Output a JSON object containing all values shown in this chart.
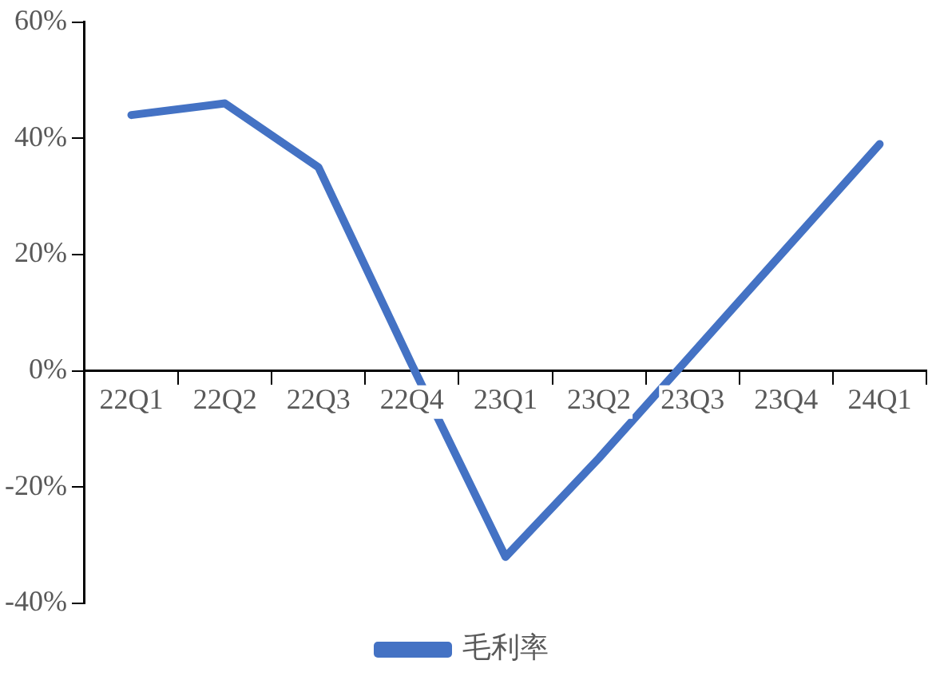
{
  "chart_data": {
    "type": "line",
    "categories": [
      "22Q1",
      "22Q2",
      "22Q3",
      "22Q4",
      "23Q1",
      "23Q2",
      "23Q3",
      "23Q4",
      "24Q1"
    ],
    "series": [
      {
        "name": "毛利率",
        "color": "#4472c4",
        "values": [
          44,
          46,
          35,
          1,
          -32,
          -15,
          3,
          21,
          39
        ]
      }
    ],
    "ylim": [
      -40,
      60
    ],
    "yticks": [
      {
        "value": -40,
        "label": "-40%"
      },
      {
        "value": -20,
        "label": "-20%"
      },
      {
        "value": 0,
        "label": "0%"
      },
      {
        "value": 20,
        "label": "20%"
      },
      {
        "value": 40,
        "label": "40%"
      },
      {
        "value": 60,
        "label": "60%"
      }
    ],
    "grid": false,
    "legend": "bottom",
    "marker": "none",
    "line_style": "solid"
  }
}
